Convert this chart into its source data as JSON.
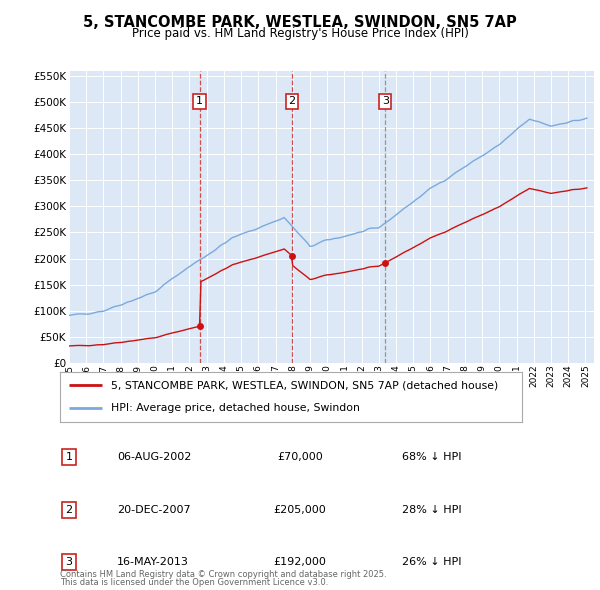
{
  "title_line1": "5, STANCOMBE PARK, WESTLEA, SWINDON, SN5 7AP",
  "title_line2": "Price paid vs. HM Land Registry's House Price Index (HPI)",
  "plot_bg_color": "#dce8f5",
  "hpi_color": "#7aaadd",
  "price_color": "#cc1111",
  "legend_line1": "5, STANCOMBE PARK, WESTLEA, SWINDON, SN5 7AP (detached house)",
  "legend_line2": "HPI: Average price, detached house, Swindon",
  "ylim": [
    0,
    560000
  ],
  "ytick_vals": [
    0,
    50000,
    100000,
    150000,
    200000,
    250000,
    300000,
    350000,
    400000,
    450000,
    500000,
    550000
  ],
  "ytick_labels": [
    "£0",
    "£50K",
    "£100K",
    "£150K",
    "£200K",
    "£250K",
    "£300K",
    "£350K",
    "£400K",
    "£450K",
    "£500K",
    "£550K"
  ],
  "xlim_start": 1995.0,
  "xlim_end": 2025.5,
  "transactions": [
    {
      "num": 1,
      "date": "06-AUG-2002",
      "price": 70000,
      "label": "68% ↓ HPI",
      "x_year": 2002.59,
      "vline_color": "#cc3333",
      "vline_style": "--"
    },
    {
      "num": 2,
      "date": "20-DEC-2007",
      "price": 205000,
      "label": "28% ↓ HPI",
      "x_year": 2007.96,
      "vline_color": "#cc3333",
      "vline_style": "--"
    },
    {
      "num": 3,
      "date": "16-MAY-2013",
      "price": 192000,
      "label": "26% ↓ HPI",
      "x_year": 2013.37,
      "vline_color": "#888888",
      "vline_style": "--"
    }
  ],
  "footer_line1": "Contains HM Land Registry data © Crown copyright and database right 2025.",
  "footer_line2": "This data is licensed under the Open Government Licence v3.0."
}
